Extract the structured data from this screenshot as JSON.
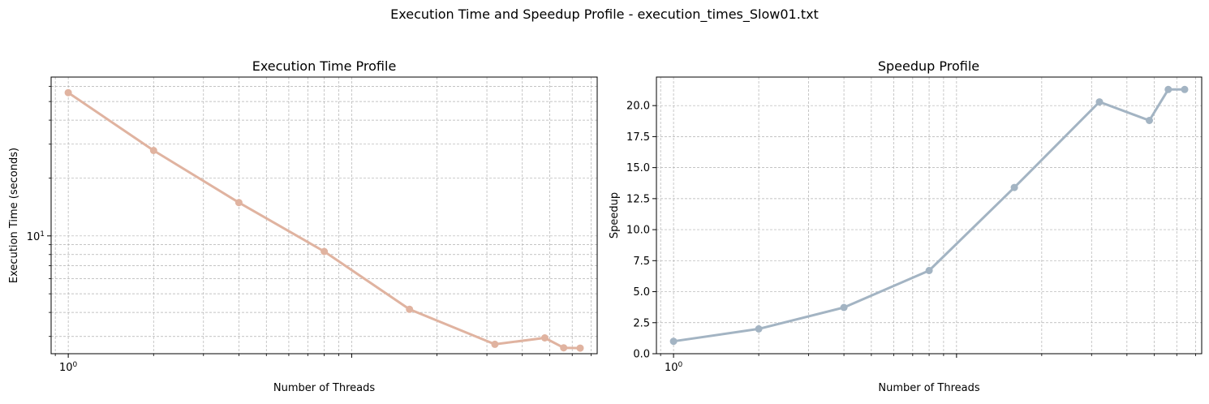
{
  "suptitle": "Execution Time and Speedup Profile - execution_times_Slow01.txt",
  "colors": {
    "exec_line": "#e0b3a0",
    "speedup_line": "#a3b4c3",
    "grid": "#b0b0b0",
    "axis": "#000000"
  },
  "chart_data": [
    {
      "type": "line",
      "title": "Execution Time Profile",
      "xlabel": "Number of Threads",
      "ylabel": "Execution Time (seconds)",
      "xscale": "log",
      "yscale": "log",
      "grid": true,
      "x": [
        1,
        2,
        4,
        8,
        16,
        32,
        48,
        56,
        64
      ],
      "series": [
        {
          "values": [
            55.6,
            27.8,
            14.9,
            8.3,
            4.15,
            2.73,
            2.95,
            2.62,
            2.61
          ]
        }
      ],
      "xlim": [
        0.87,
        73.5
      ],
      "ylim": [
        2.44,
        67.0
      ],
      "xtick_labels": [
        {
          "value": 1,
          "label": "10^0"
        }
      ],
      "ytick_labels": [
        {
          "value": 10,
          "label": "10^1"
        }
      ]
    },
    {
      "type": "line",
      "title": "Speedup Profile",
      "xlabel": "Number of Threads",
      "ylabel": "Speedup",
      "xscale": "log",
      "yscale": "linear",
      "grid": true,
      "x": [
        1,
        2,
        4,
        8,
        16,
        32,
        48,
        56,
        64
      ],
      "series": [
        {
          "values": [
            1.0,
            2.0,
            3.73,
            6.7,
            13.4,
            20.3,
            18.8,
            21.3,
            21.3
          ]
        }
      ],
      "xlim": [
        0.87,
        73.5
      ],
      "ylim": [
        0,
        22.3
      ],
      "xtick_labels": [
        {
          "value": 1,
          "label": "10^0"
        }
      ],
      "yticks": [
        0.0,
        2.5,
        5.0,
        7.5,
        10.0,
        12.5,
        15.0,
        17.5,
        20.0
      ],
      "ytick_labels": [
        "0.0",
        "2.5",
        "5.0",
        "7.5",
        "10.0",
        "12.5",
        "15.0",
        "17.5",
        "20.0"
      ]
    }
  ]
}
